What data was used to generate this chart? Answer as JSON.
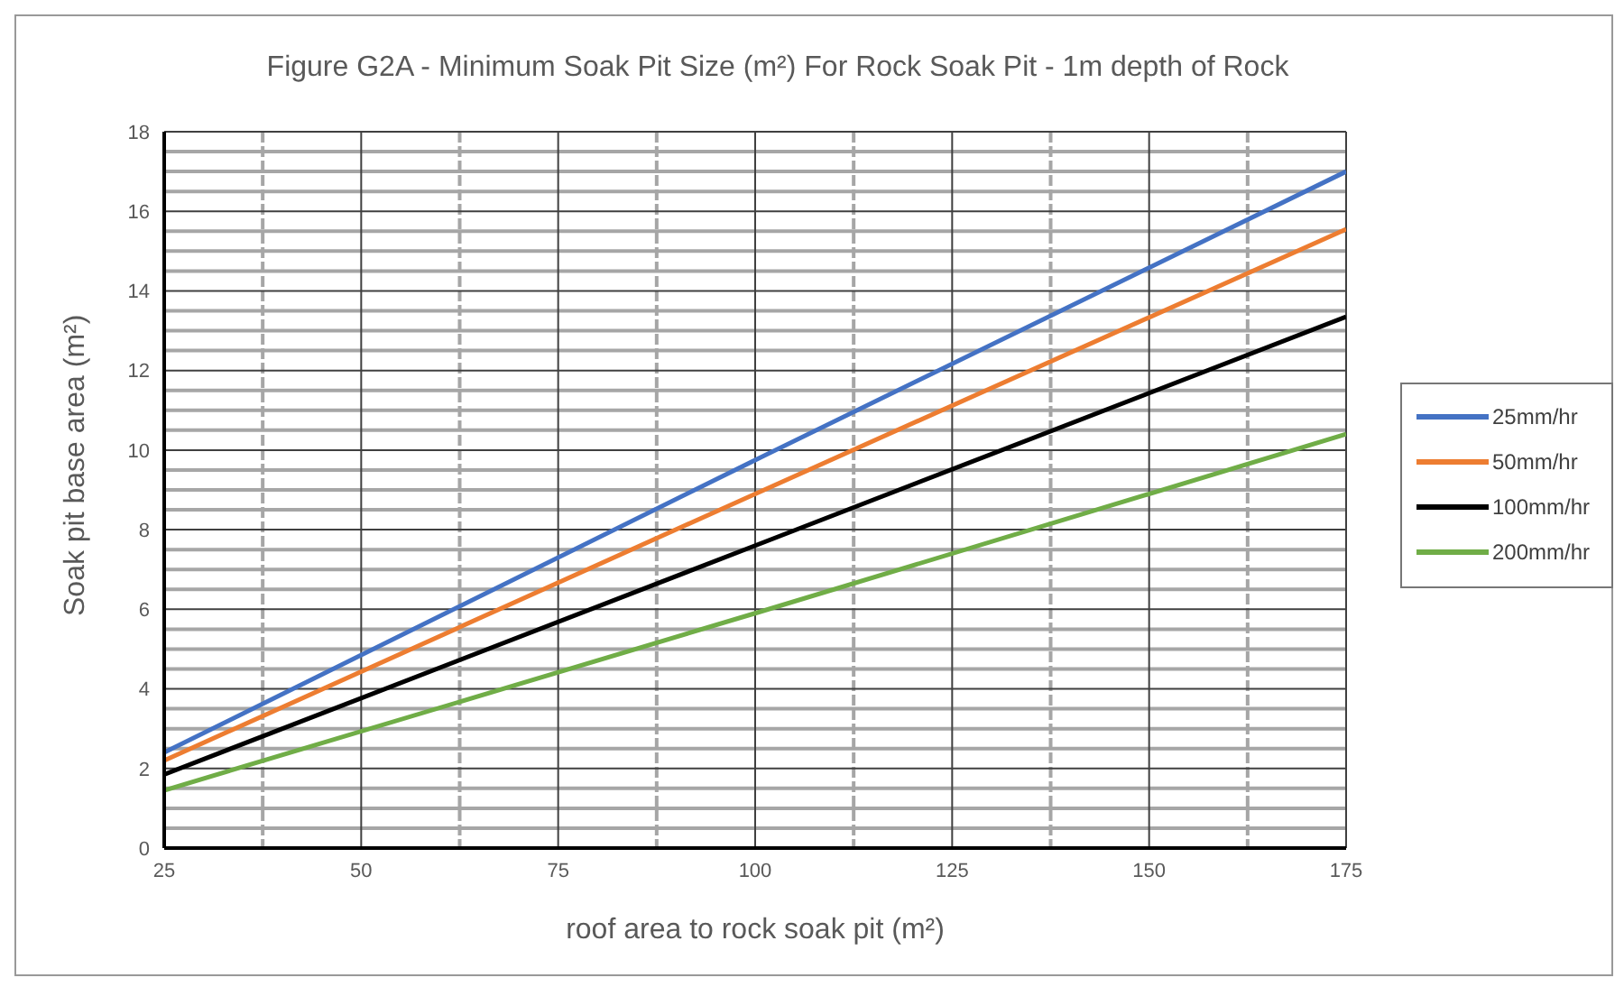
{
  "chart_data": {
    "type": "line",
    "title": "Figure G2A - Minimum Soak Pit Size (m²) For Rock Soak Pit - 1m depth of Rock",
    "xlabel": "roof area to rock soak pit (m²)",
    "ylabel": "Soak pit base area (m²)",
    "x": [
      25,
      100,
      175
    ],
    "series": [
      {
        "name": "25mm/hr",
        "color": "#4472c4",
        "values": [
          2.4,
          9.75,
          17.0
        ]
      },
      {
        "name": "50mm/hr",
        "color": "#ed7d31",
        "values": [
          2.2,
          8.9,
          15.55
        ]
      },
      {
        "name": "100mm/hr",
        "color": "#000000",
        "values": [
          1.85,
          7.6,
          13.35
        ]
      },
      {
        "name": "200mm/hr",
        "color": "#70ad47",
        "values": [
          1.45,
          5.9,
          10.4
        ]
      }
    ],
    "xlim": [
      25,
      175
    ],
    "xticks": [
      25,
      50,
      75,
      100,
      125,
      150,
      175
    ],
    "ylim": [
      0,
      18
    ],
    "yticks": [
      0,
      2,
      4,
      6,
      8,
      10,
      12,
      14,
      16,
      18
    ],
    "grid": true,
    "legend": "right",
    "marker": "none",
    "line_style": "solid"
  }
}
